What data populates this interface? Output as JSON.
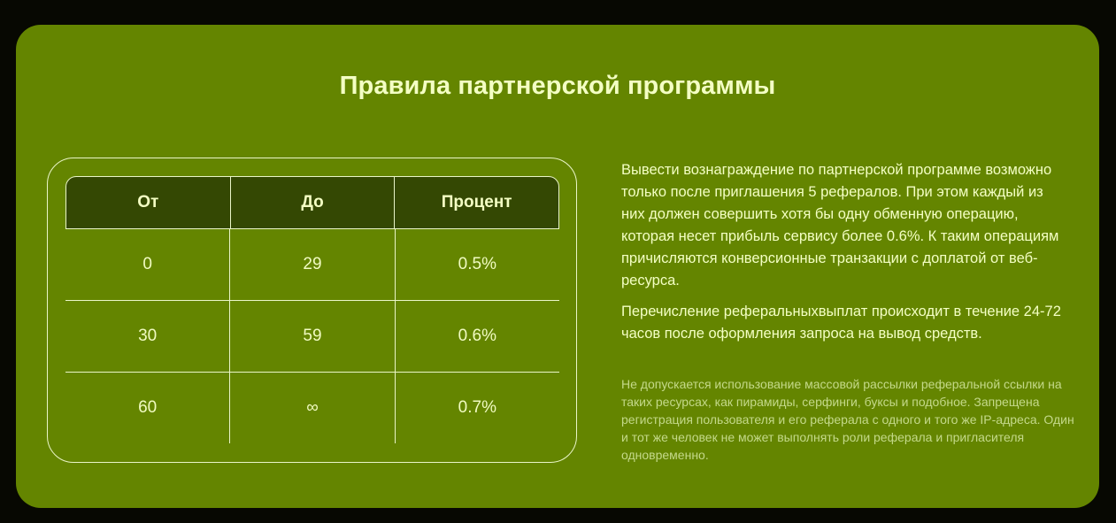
{
  "page": {
    "title": "Правила партнерской программы"
  },
  "table": {
    "headers": [
      "От",
      "До",
      "Процент"
    ],
    "rows": [
      [
        "0",
        "29",
        "0.5%"
      ],
      [
        "30",
        "59",
        "0.6%"
      ],
      [
        "60",
        "∞",
        "0.7%"
      ]
    ]
  },
  "info": {
    "paragraph_1": "Вывести вознаграждение по партнерской программе возможно только после приглашения 5 рефералов. При этом каждый из них должен совершить хотя бы одну обменную операцию, которая несет прибыль сервису более 0.6%. К таким операциям причисляются конверсионные транзакции с доплатой от веб-ресурса.",
    "paragraph_2": "Перечисление реферальныхвыплат происходит в течение 24-72 часов после оформления запроса на вывод средств.",
    "note": "Не допускается использование массовой рассылки реферальной ссылки на таких ресурсах, как пирамиды, серфинги, буксы и подобное. Запрещена регистрация пользователя и его реферала с одного и того же IP-адреса. Один и тот же человек не может выполнять роли реферала и пригласителя одновременно."
  },
  "colors": {
    "page_bg": "#070802",
    "panel_bg": "#648500",
    "header_bg": "#344803",
    "text_primary": "#f4ffc4",
    "text_muted": "#c4d98a",
    "border": "#eaf5c8"
  }
}
